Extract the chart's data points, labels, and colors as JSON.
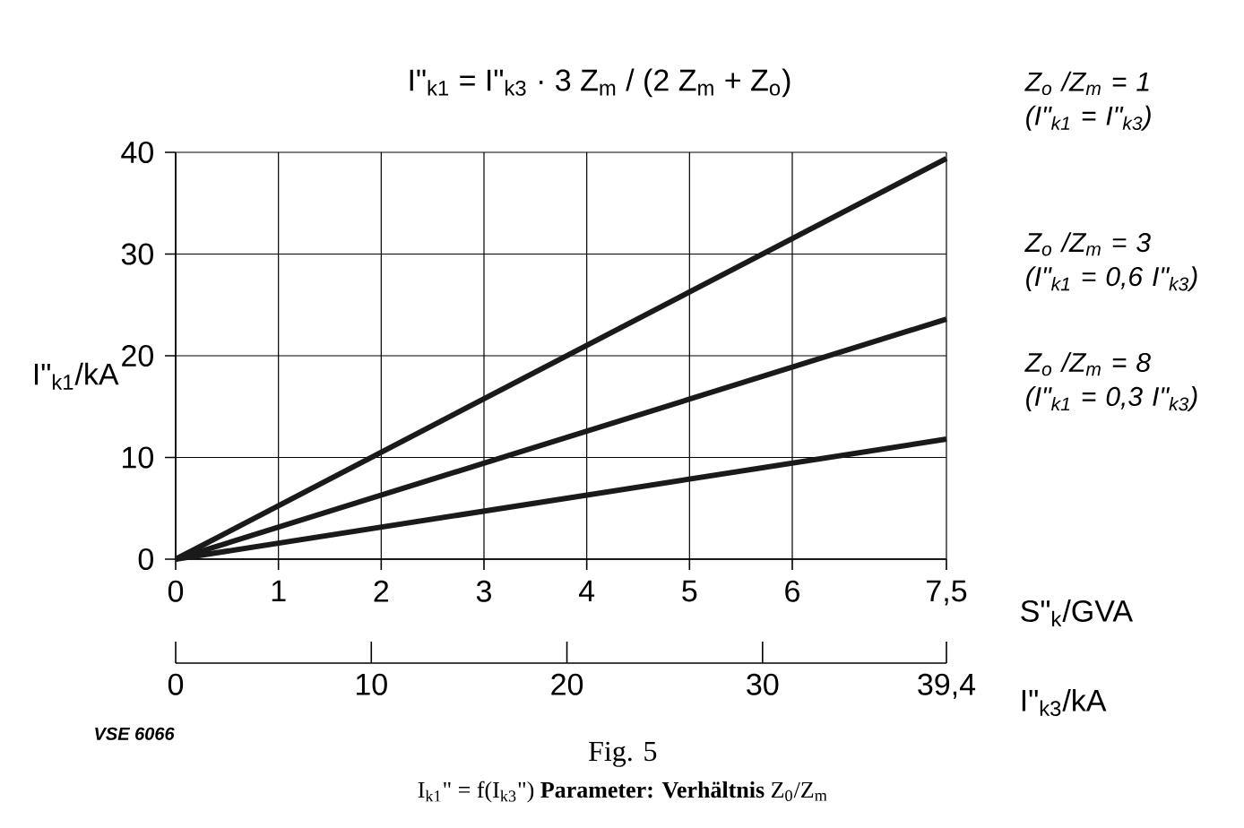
{
  "chart_data": {
    "type": "line",
    "title": "I\"$_{k1}$ = I\"$_{k3}$ · 3 Z$_{m}$ / (2 Z$_{m}$ + Z$_{o}$)",
    "xlabel": "S\"$_{k}$/GVA",
    "x2label": "I\"$_{k3}$/kA",
    "ylabel": "I\"$_{k1}$/kA",
    "xlim": [
      0,
      7.5
    ],
    "xticks": [
      0,
      1,
      2,
      3,
      4,
      5,
      6,
      {
        "value": 7.5,
        "label": "7,5"
      }
    ],
    "x2lim": [
      0,
      39.4
    ],
    "x2ticks": [
      0,
      10,
      20,
      30,
      {
        "value": 39.4,
        "label": "39,4"
      }
    ],
    "x": [
      0,
      7.5
    ],
    "ylim": [
      0,
      40
    ],
    "yticks": [
      0,
      10,
      20,
      30,
      40
    ],
    "grid": true,
    "marker": "none",
    "series": [
      {
        "name": "Z$_{o}$ /Z$_{m}$ = 1 (I\"$_{k1}$ = I\"$_{k3}$)",
        "color": "#1a1a1a",
        "values": [
          0,
          39.4
        ]
      },
      {
        "name": "Z$_{o}$ /Z$_{m}$ = 3 (I\"$_{k1}$ = 0,6 I\"$_{k3}$)",
        "color": "#1a1a1a",
        "values": [
          0,
          23.6
        ]
      },
      {
        "name": "Z$_{o}$ /Z$_{m}$ = 8 (I\"$_{k1}$ = 0,3 I\"$_{k3}$)",
        "color": "#1a1a1a",
        "values": [
          0,
          11.8
        ]
      }
    ],
    "annotations": [
      "VSE 6066",
      "Fig. 5",
      "I$_{k1}$\" = f(I$_{k3}$\")   **Parameter: Verhältnis**   Z$_{0}$/Z$_{m}$"
    ]
  }
}
